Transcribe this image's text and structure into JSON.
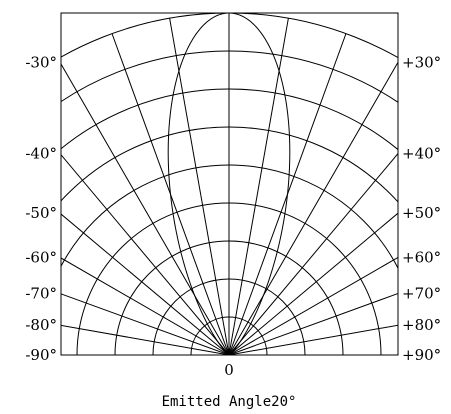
{
  "chart_data": {
    "type": "polar",
    "title": "",
    "left_labels": [
      "-30°",
      "-40°",
      "-50°",
      "-60°",
      "-70°",
      "-80°",
      "-90°"
    ],
    "right_labels": [
      "+30°",
      "+40°",
      "+50°",
      "+60°",
      "+70°",
      "+80°",
      "+90°"
    ],
    "label_angles_deg": [
      30,
      40,
      50,
      60,
      70,
      80,
      90
    ],
    "radial_rings": 9,
    "spoke_step_deg": 10,
    "pattern": {
      "beam_half_angle_deg": 20
    },
    "origin_label": "0",
    "caption": "Emitted Angle20°",
    "grid": true
  }
}
